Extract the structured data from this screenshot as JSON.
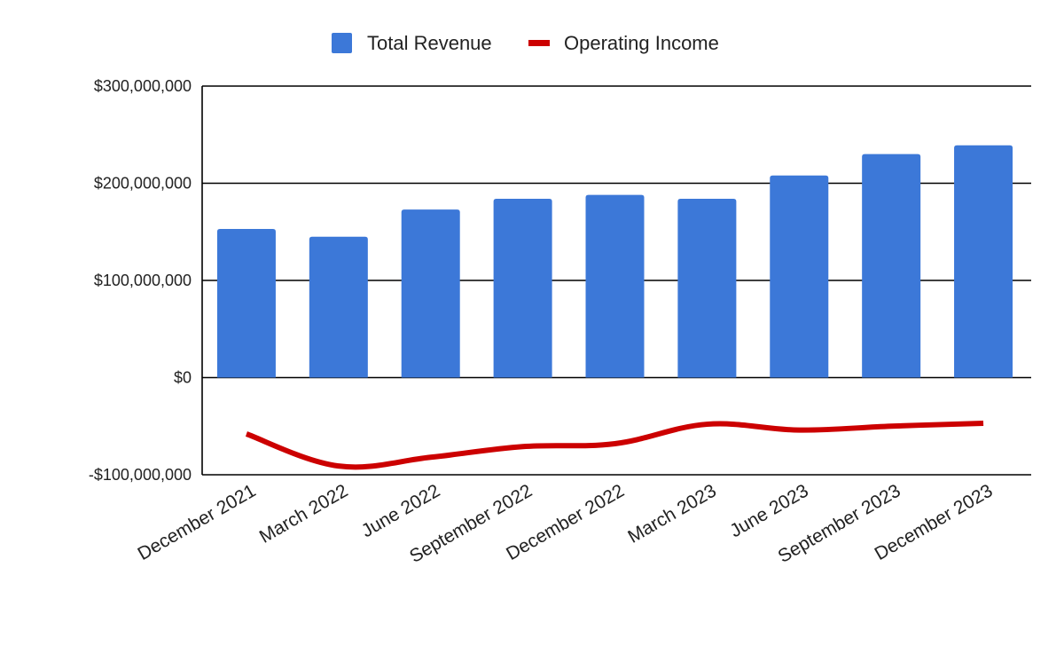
{
  "chart_data": {
    "type": "bar",
    "categories": [
      "December 2021",
      "March 2022",
      "June 2022",
      "September 2022",
      "December 2022",
      "March 2023",
      "June 2023",
      "September 2023",
      "December 2023"
    ],
    "series": [
      {
        "name": "Total Revenue",
        "type": "bar",
        "color": "#3c78d8",
        "values": [
          153000000,
          145000000,
          173000000,
          184000000,
          188000000,
          184000000,
          208000000,
          230000000,
          239000000
        ]
      },
      {
        "name": "Operating Income",
        "type": "line",
        "color": "#cc0000",
        "values": [
          -58000000,
          -91000000,
          -82000000,
          -71000000,
          -68000000,
          -48000000,
          -54000000,
          -50000000,
          -47000000
        ]
      }
    ],
    "yticks": [
      {
        "value": 300000000,
        "label": "$300,000,000"
      },
      {
        "value": 200000000,
        "label": "$200,000,000"
      },
      {
        "value": 100000000,
        "label": "$100,000,000"
      },
      {
        "value": 0,
        "label": "$0"
      },
      {
        "value": -100000000,
        "label": "-$100,000,000"
      }
    ],
    "ylim": [
      -100000000,
      300000000
    ],
    "title": "",
    "xlabel": "",
    "ylabel": "",
    "legend_position": "top-center",
    "grid": true
  }
}
